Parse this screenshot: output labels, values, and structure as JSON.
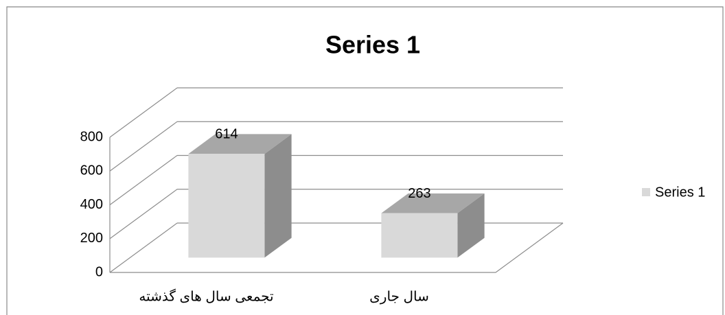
{
  "chart_data": {
    "type": "bar3d",
    "title": "Series 1",
    "categories": [
      "تجمعی سال های گذشته",
      "سال جاری"
    ],
    "series": [
      {
        "name": "Series 1",
        "color": "#d9d9d9",
        "values": [
          614,
          263
        ]
      }
    ],
    "ylim": [
      0,
      800
    ],
    "yticks": [
      0,
      200,
      400,
      600,
      800
    ],
    "grid": true,
    "legend": "right"
  }
}
